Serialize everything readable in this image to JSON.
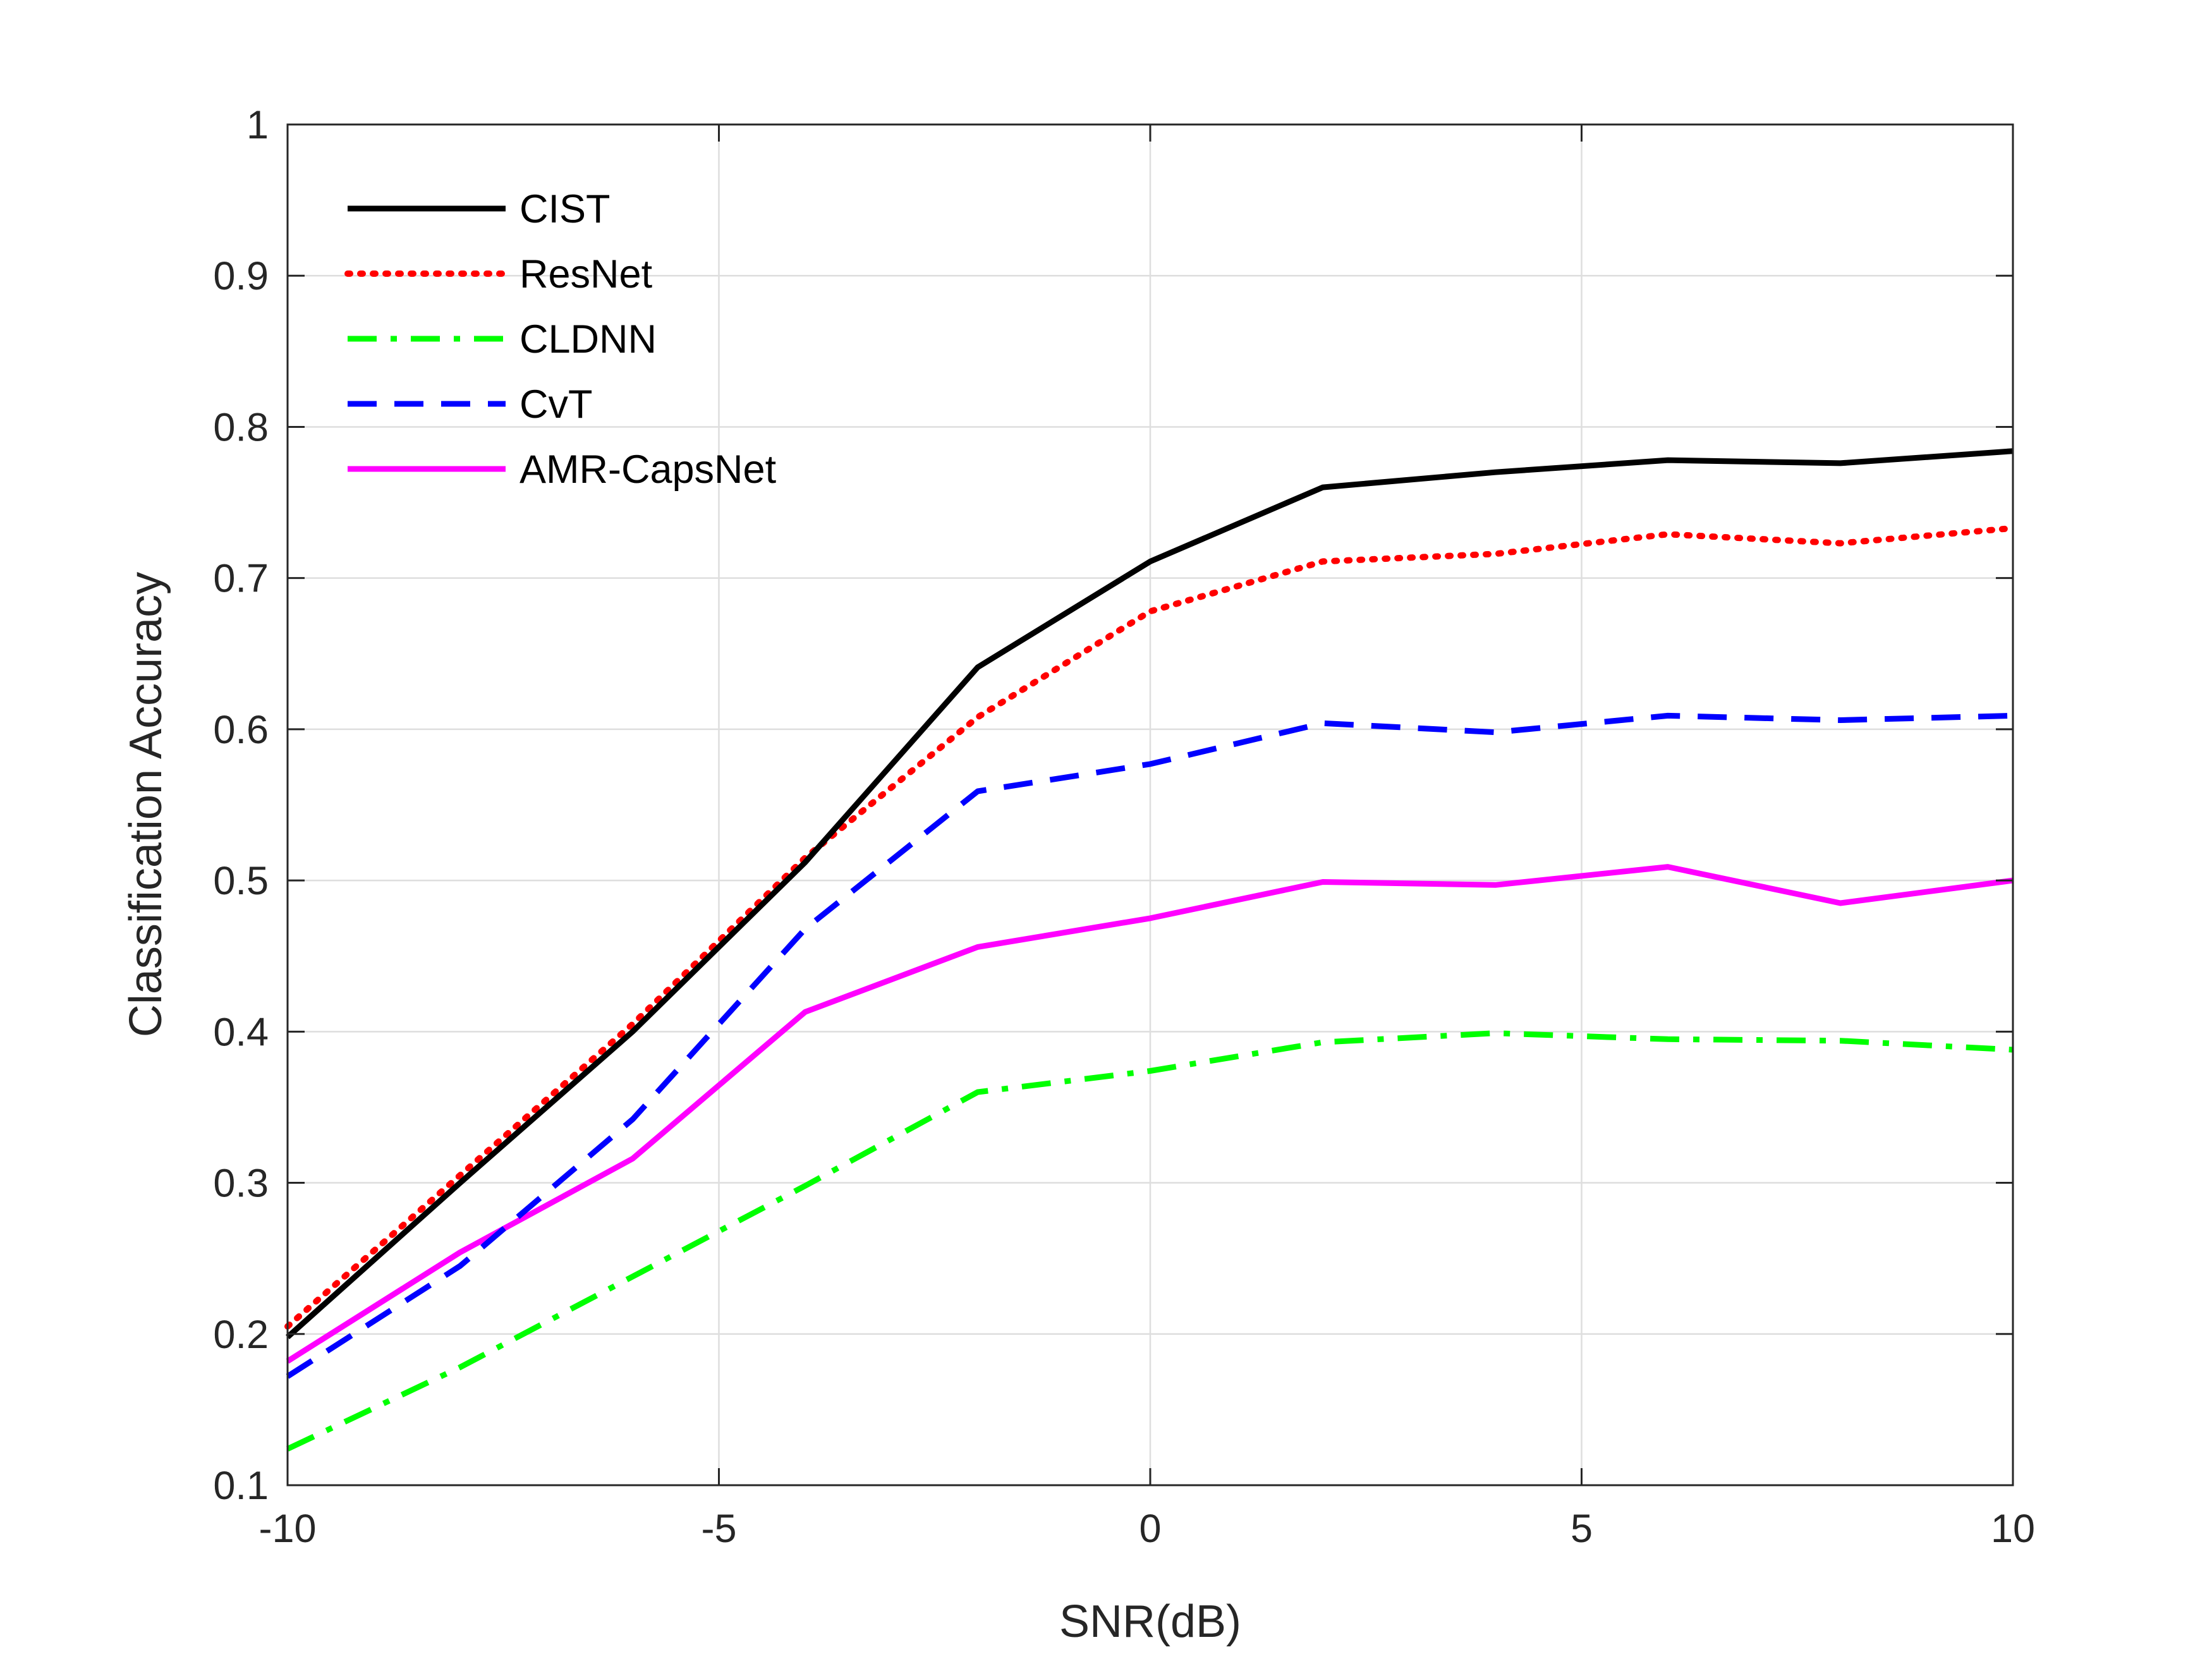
{
  "chart_data": {
    "type": "line",
    "xlabel": "SNR(dB)",
    "ylabel": "Classification Accuracy",
    "xlim": [
      -10,
      10
    ],
    "ylim": [
      0.1,
      1
    ],
    "grid": true,
    "legend_position": "top-left",
    "xticks": [
      -10,
      -5,
      0,
      5,
      10
    ],
    "xtick_labels": [
      "-10",
      "-5",
      "0",
      "5",
      "10"
    ],
    "yticks": [
      0.1,
      0.2,
      0.3,
      0.4,
      0.5,
      0.6,
      0.7,
      0.8,
      0.9,
      1
    ],
    "ytick_labels": [
      "0.1",
      "0.2",
      "0.3",
      "0.4",
      "0.5",
      "0.6",
      "0.7",
      "0.8",
      "0.9",
      "1"
    ],
    "x": [
      -10,
      -8,
      -6,
      -4,
      -2,
      0,
      2,
      4,
      6,
      8,
      10
    ],
    "series": [
      {
        "name": "CIST",
        "color": "#000000",
        "style": "solid",
        "values": [
          0.198,
          0.3,
          0.4,
          0.512,
          0.641,
          0.711,
          0.76,
          0.77,
          0.778,
          0.776,
          0.784
        ]
      },
      {
        "name": "ResNet",
        "color": "#ff0000",
        "style": "dotted",
        "values": [
          0.205,
          0.305,
          0.405,
          0.515,
          0.608,
          0.678,
          0.711,
          0.716,
          0.729,
          0.723,
          0.733
        ]
      },
      {
        "name": "CLDNN",
        "color": "#00ff00",
        "style": "dashdot",
        "values": [
          0.124,
          0.178,
          0.238,
          0.298,
          0.36,
          0.374,
          0.393,
          0.399,
          0.395,
          0.394,
          0.388
        ]
      },
      {
        "name": "CvT",
        "color": "#0000ff",
        "style": "dashed",
        "values": [
          0.172,
          0.245,
          0.342,
          0.468,
          0.559,
          0.577,
          0.604,
          0.598,
          0.609,
          0.606,
          0.609
        ]
      },
      {
        "name": "AMR-CapsNet",
        "color": "#ff00ff",
        "style": "solid",
        "values": [
          0.182,
          0.254,
          0.316,
          0.413,
          0.456,
          0.475,
          0.499,
          0.497,
          0.509,
          0.485,
          0.5
        ]
      }
    ]
  }
}
